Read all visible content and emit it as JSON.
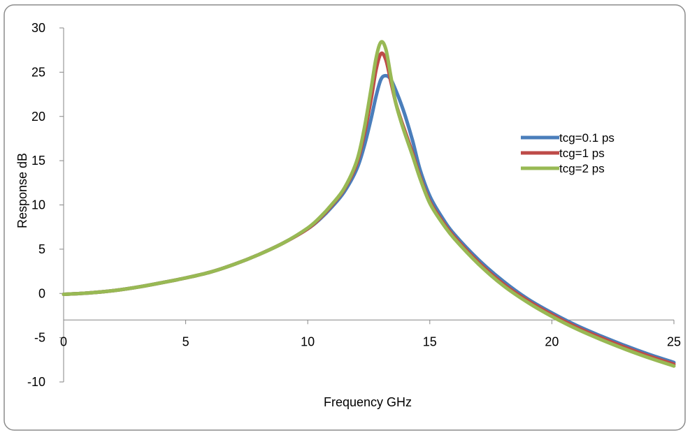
{
  "chart_data": {
    "type": "line",
    "title": "",
    "xlabel": "Frequency GHz",
    "ylabel": "Response dB",
    "xlim": [
      0,
      25
    ],
    "ylim": [
      -10,
      30
    ],
    "x_ticks": [
      0,
      5,
      10,
      15,
      20,
      25
    ],
    "y_ticks": [
      -10,
      -5,
      0,
      5,
      10,
      15,
      20,
      25,
      30
    ],
    "x_tick_labels": [
      "0",
      "5",
      "10",
      "15",
      "20",
      "25"
    ],
    "y_tick_labels": [
      "-10",
      "-5",
      "0",
      "5",
      "10",
      "15",
      "20",
      "25",
      "30"
    ],
    "grid": false,
    "legend_position": "right",
    "series": [
      {
        "name": "tcg=0.1 ps",
        "color": "#4a7ebb",
        "x": [
          0,
          1,
          2,
          3,
          4,
          5,
          6,
          7,
          8,
          9,
          10,
          10.5,
          11,
          11.5,
          12,
          12.3,
          12.6,
          12.8,
          13,
          13.2,
          13.4,
          13.6,
          13.8,
          14,
          14.3,
          14.6,
          15,
          15.5,
          16,
          17,
          18,
          19,
          20,
          21,
          22,
          23,
          24,
          25
        ],
        "y": [
          -0.1,
          0.05,
          0.3,
          0.7,
          1.2,
          1.75,
          2.4,
          3.3,
          4.4,
          5.7,
          7.3,
          8.4,
          9.8,
          11.5,
          14.0,
          16.5,
          19.8,
          22.3,
          24.2,
          24.6,
          24.2,
          23.0,
          21.6,
          20.0,
          17.2,
          14.0,
          11.0,
          8.6,
          6.7,
          3.8,
          1.4,
          -0.6,
          -2.2,
          -3.6,
          -4.8,
          -5.9,
          -6.9,
          -7.8
        ]
      },
      {
        "name": "tcg=1 ps",
        "color": "#be4b48",
        "x": [
          0,
          1,
          2,
          3,
          4,
          5,
          6,
          7,
          8,
          9,
          10,
          10.5,
          11,
          11.5,
          12,
          12.3,
          12.6,
          12.8,
          13,
          13.2,
          13.4,
          13.6,
          13.8,
          14,
          14.3,
          14.6,
          15,
          15.5,
          16,
          17,
          18,
          19,
          20,
          21,
          22,
          23,
          24,
          25
        ],
        "y": [
          -0.1,
          0.05,
          0.3,
          0.7,
          1.2,
          1.75,
          2.4,
          3.3,
          4.4,
          5.7,
          7.3,
          8.5,
          10.0,
          11.8,
          14.6,
          17.8,
          22.0,
          25.3,
          27.1,
          26.4,
          24.0,
          21.6,
          19.8,
          18.2,
          15.8,
          13.2,
          10.4,
          8.2,
          6.4,
          3.5,
          1.1,
          -0.8,
          -2.4,
          -3.8,
          -5.0,
          -6.1,
          -7.1,
          -8.0
        ]
      },
      {
        "name": "tcg=2 ps",
        "color": "#98b954",
        "x": [
          0,
          1,
          2,
          3,
          4,
          5,
          6,
          7,
          8,
          9,
          10,
          10.5,
          11,
          11.5,
          12,
          12.3,
          12.6,
          12.8,
          13,
          13.2,
          13.4,
          13.6,
          13.8,
          14,
          14.3,
          14.6,
          15,
          15.5,
          16,
          17,
          18,
          19,
          20,
          21,
          22,
          23,
          24,
          25
        ],
        "y": [
          -0.1,
          0.05,
          0.3,
          0.7,
          1.2,
          1.75,
          2.4,
          3.3,
          4.4,
          5.7,
          7.4,
          8.6,
          10.1,
          11.9,
          14.9,
          18.4,
          23.2,
          26.6,
          28.4,
          27.6,
          24.6,
          21.6,
          19.6,
          17.9,
          15.5,
          13.0,
          10.2,
          8.0,
          6.2,
          3.3,
          0.9,
          -1.0,
          -2.6,
          -4.0,
          -5.2,
          -6.3,
          -7.3,
          -8.2
        ]
      }
    ]
  }
}
